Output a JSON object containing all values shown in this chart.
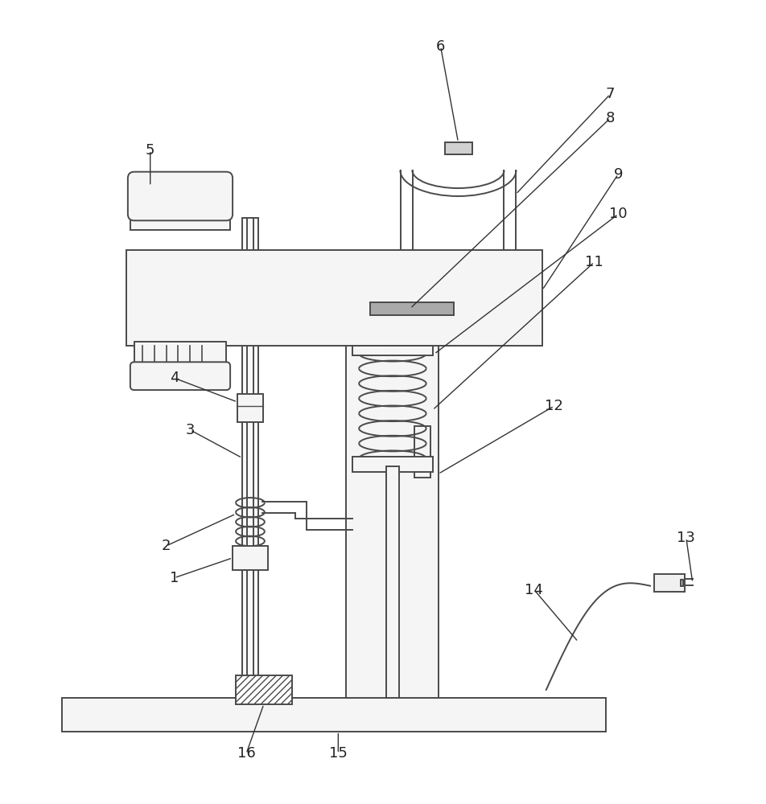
{
  "background_color": "#ffffff",
  "line_color": "#4a4a4a",
  "lw": 1.4,
  "fig_w": 9.53,
  "fig_h": 10.0,
  "dpi": 100
}
